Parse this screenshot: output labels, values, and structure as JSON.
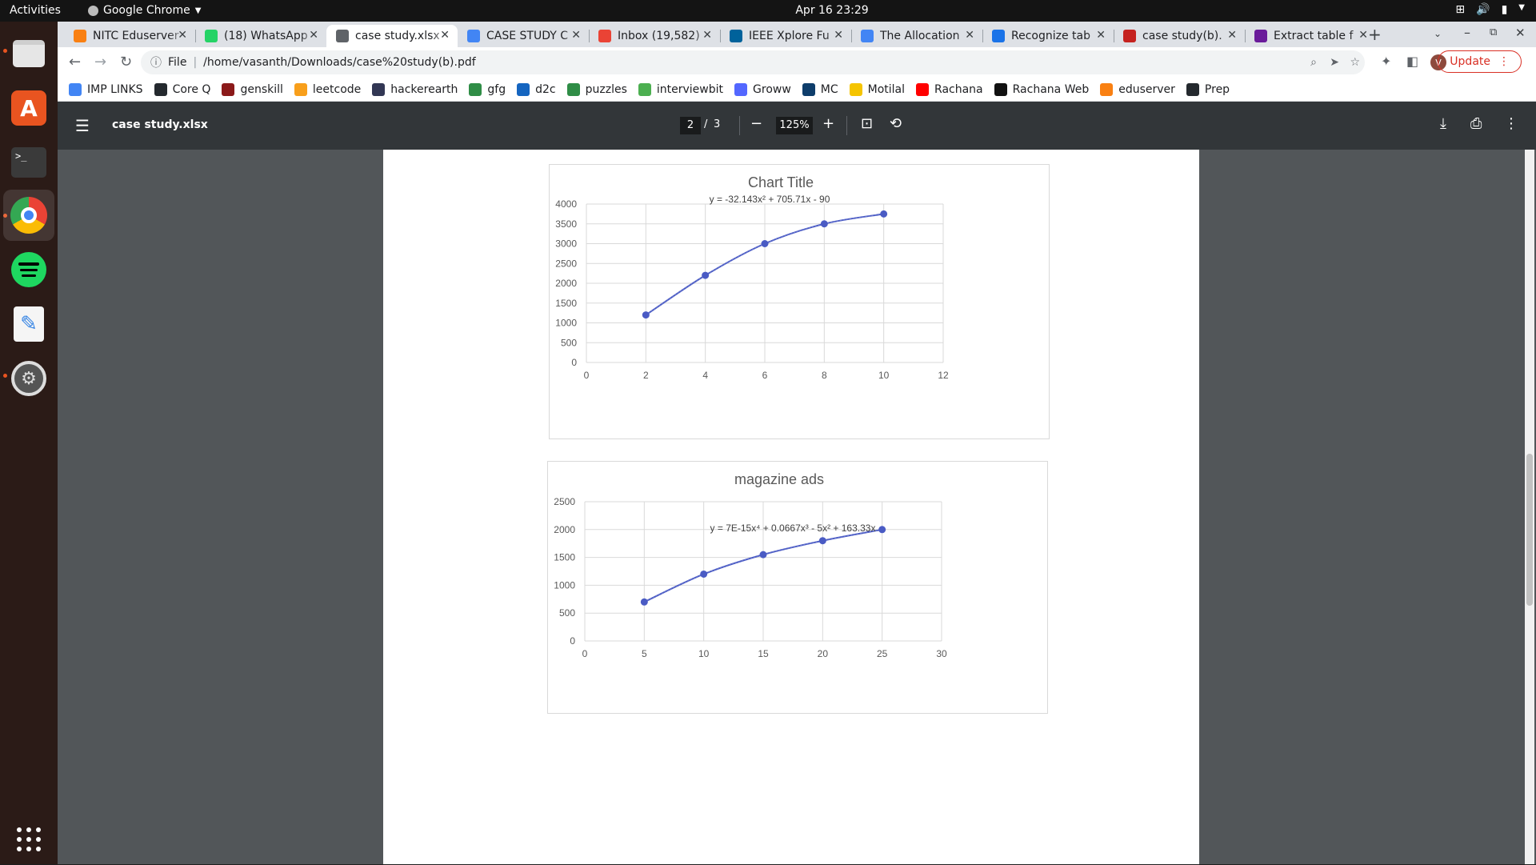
{
  "system": {
    "activities": "Activities",
    "app_name": "Google Chrome",
    "clock": "Apr 16  23:29"
  },
  "tabs": [
    {
      "title": "NITC Eduserver",
      "icon": "moodle-icon",
      "icon_color": "#f98012"
    },
    {
      "title": "(18) WhatsApp",
      "icon": "whatsapp-icon",
      "icon_color": "#25d366"
    },
    {
      "title": "case study.xlsx",
      "icon": "globe-icon",
      "icon_color": "#5f6368",
      "active": true
    },
    {
      "title": "CASE STUDY C",
      "icon": "docs-icon",
      "icon_color": "#4285f4"
    },
    {
      "title": "Inbox (19,582)",
      "icon": "gmail-icon",
      "icon_color": "#ea4335"
    },
    {
      "title": "IEEE Xplore Fu",
      "icon": "ieee-icon",
      "icon_color": "#00629b"
    },
    {
      "title": "The Allocation",
      "icon": "google-icon",
      "icon_color": "#4285f4"
    },
    {
      "title": "Recognize tab",
      "icon": "pdf-icon",
      "icon_color": "#1a73e8"
    },
    {
      "title": "case study(b).",
      "icon": "file-icon",
      "icon_color": "#c5221f"
    },
    {
      "title": "Extract table f",
      "icon": "extract-icon",
      "icon_color": "#6a1b9a"
    }
  ],
  "address_bar": {
    "scheme": "File",
    "url": "/home/vasanth/Downloads/case%20study(b).pdf"
  },
  "update_button": "Update",
  "bookmarks": [
    {
      "label": "IMP LINKS",
      "color": "#4285f4"
    },
    {
      "label": "Core Q",
      "color": "#24292e"
    },
    {
      "label": "genskill",
      "color": "#8b1a1a"
    },
    {
      "label": "leetcode",
      "color": "#f89f1b"
    },
    {
      "label": "hackerearth",
      "color": "#323754"
    },
    {
      "label": "gfg",
      "color": "#2f8d46"
    },
    {
      "label": "d2c",
      "color": "#1565c0"
    },
    {
      "label": "puzzles",
      "color": "#2f8d46"
    },
    {
      "label": "interviewbit",
      "color": "#4caf50"
    },
    {
      "label": "Groww",
      "color": "#5367ff"
    },
    {
      "label": "MC",
      "color": "#0e3d6b"
    },
    {
      "label": "Motilal",
      "color": "#f5c400"
    },
    {
      "label": "Rachana",
      "color": "#ff0000"
    },
    {
      "label": "Rachana Web",
      "color": "#111111"
    },
    {
      "label": "eduserver",
      "color": "#f98012"
    },
    {
      "label": "Prep",
      "color": "#24292e"
    }
  ],
  "pdf": {
    "title": "case study.xlsx",
    "page_current": "2",
    "page_separator": "/",
    "page_total": "3",
    "zoom": "125%"
  },
  "chart_data": [
    {
      "type": "scatter",
      "title": "Chart Title",
      "trendline_label": "y = -32.143x² + 705.71x - 90",
      "x": [
        2,
        4,
        6,
        8,
        10
      ],
      "y": [
        1200,
        2200,
        3000,
        3500,
        3750
      ],
      "xlim": [
        0,
        12
      ],
      "ylim": [
        0,
        4000
      ],
      "x_ticks": [
        0,
        2,
        4,
        6,
        8,
        10,
        12
      ],
      "y_ticks": [
        0,
        500,
        1000,
        1500,
        2000,
        2500,
        3000,
        3500,
        4000
      ],
      "color": "#4a5bc4",
      "grid": true
    },
    {
      "type": "scatter",
      "title": "magazine ads",
      "trendline_label": "y = 7E-15x⁴ + 0.0667x³ - 5x² + 163.33x",
      "x": [
        5,
        10,
        15,
        20,
        25
      ],
      "y": [
        700,
        1200,
        1550,
        1800,
        2000
      ],
      "xlim": [
        0,
        30
      ],
      "ylim": [
        0,
        2500
      ],
      "x_ticks": [
        0,
        5,
        10,
        15,
        20,
        25,
        30
      ],
      "y_ticks": [
        0,
        500,
        1000,
        1500,
        2000,
        2500
      ],
      "color": "#4a5bc4",
      "grid": true
    }
  ]
}
